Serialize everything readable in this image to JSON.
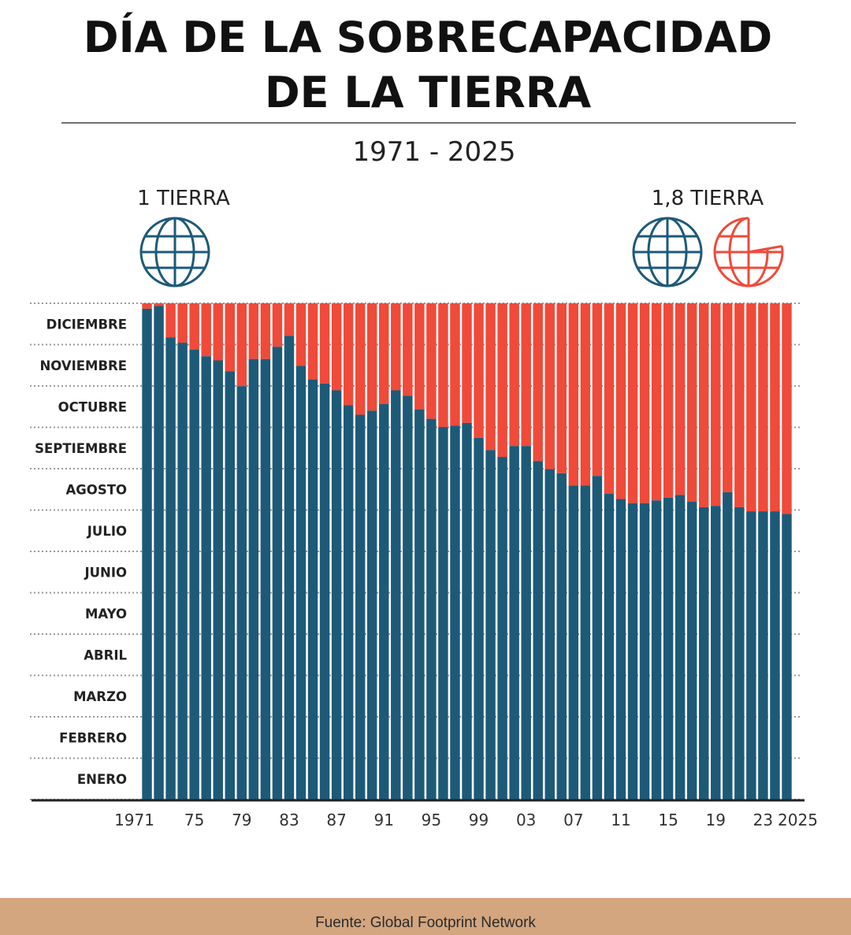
{
  "title_line1": "DÍA DE LA SOBRECAPACIDAD",
  "title_line2": "DE LA TIERRA",
  "subtitle": "1971 - 2025",
  "left_label": "1 TIERRA",
  "right_label": "1,8 TIERRA",
  "icons": {
    "left": "globe-icon",
    "right_full": "globe-icon",
    "right_partial": "partial-globe-icon"
  },
  "source": "Fuente: Global Footprint Network",
  "colors": {
    "within_capacity": "#1d5a78",
    "overshoot": "#ef4a3a",
    "footer": "#d3a680"
  },
  "chart_data": {
    "type": "bar",
    "stacked": true,
    "title": "DÍA DE LA SOBRECAPACIDAD DE LA TIERRA",
    "y_axis": "date within the year (overshoot day)",
    "ylim": [
      "01-01",
      "12-31"
    ],
    "grid": true,
    "y_tick_labels": [
      "DICIEMBRE",
      "NOVIEMBRE",
      "OCTUBRE",
      "SEPTIEMBRE",
      "AGOSTO",
      "JULIO",
      "JUNIO",
      "MAYO",
      "ABRIL",
      "MARZO",
      "FEBRERO",
      "ENERO"
    ],
    "x_tick_labels": [
      {
        "year": 1971,
        "label": "1971"
      },
      {
        "year": 1975,
        "label": "75"
      },
      {
        "year": 1979,
        "label": "79"
      },
      {
        "year": 1983,
        "label": "83"
      },
      {
        "year": 1987,
        "label": "87"
      },
      {
        "year": 1991,
        "label": "91"
      },
      {
        "year": 1995,
        "label": "95"
      },
      {
        "year": 1999,
        "label": "99"
      },
      {
        "year": 2003,
        "label": "03"
      },
      {
        "year": 2007,
        "label": "07"
      },
      {
        "year": 2011,
        "label": "11"
      },
      {
        "year": 2015,
        "label": "15"
      },
      {
        "year": 2019,
        "label": "19"
      },
      {
        "year": 2023,
        "label": "23"
      },
      {
        "year": 2025,
        "label": "2025"
      }
    ],
    "years": [
      1971,
      1972,
      1973,
      1974,
      1975,
      1976,
      1977,
      1978,
      1979,
      1980,
      1981,
      1982,
      1983,
      1984,
      1985,
      1986,
      1987,
      1988,
      1989,
      1990,
      1991,
      1992,
      1993,
      1994,
      1995,
      1996,
      1997,
      1998,
      1999,
      2000,
      2001,
      2002,
      2003,
      2004,
      2005,
      2006,
      2007,
      2008,
      2009,
      2010,
      2011,
      2012,
      2013,
      2014,
      2015,
      2016,
      2017,
      2018,
      2019,
      2020,
      2021,
      2022,
      2023,
      2024,
      2025
    ],
    "overshoot_dates": [
      "12-27",
      "12-29",
      "12-06",
      "12-02",
      "11-27",
      "11-22",
      "11-19",
      "11-11",
      "10-31",
      "11-20",
      "11-20",
      "11-29",
      "12-07",
      "11-15",
      "11-05",
      "11-02",
      "10-28",
      "10-17",
      "10-10",
      "10-13",
      "10-18",
      "10-28",
      "10-24",
      "10-14",
      "10-07",
      "10-01",
      "10-02",
      "10-04",
      "09-23",
      "09-14",
      "09-09",
      "09-17",
      "09-17",
      "09-06",
      "08-31",
      "08-28",
      "08-19",
      "08-19",
      "08-26",
      "08-13",
      "08-09",
      "08-06",
      "08-06",
      "08-08",
      "08-10",
      "08-12",
      "08-07",
      "08-03",
      "08-04",
      "08-14",
      "08-03",
      "07-31",
      "07-31",
      "07-31",
      "07-29"
    ],
    "series": [
      {
        "values_from": "overshoot_dates",
        "color": "#1d5a78"
      },
      {
        "values_from": "remainder_of_year",
        "color": "#ef4a3a"
      }
    ]
  }
}
